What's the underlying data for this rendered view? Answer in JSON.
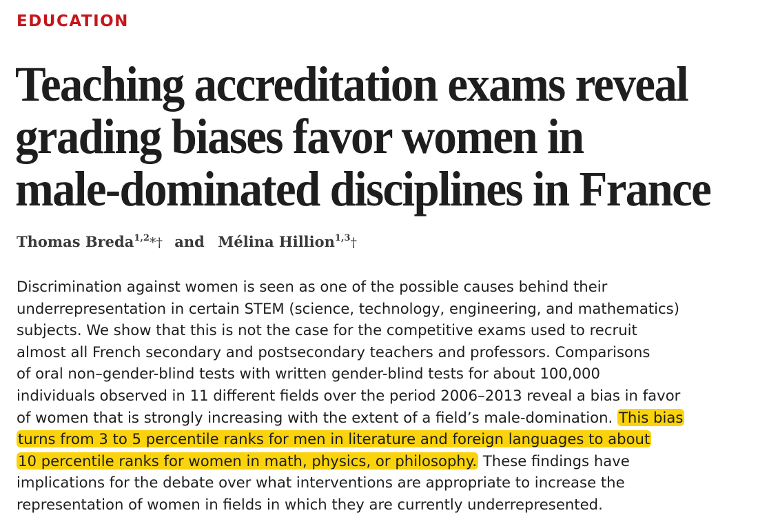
{
  "section_label": "EDUCATION",
  "title_lines": [
    "Teaching accreditation exams reveal",
    "grading biases favor women in",
    "male-dominated disciplines in France"
  ],
  "authors": [
    {
      "name": "Thomas Breda",
      "affiliations": "1,2",
      "marks": "*†"
    },
    {
      "name": "Mélina Hillion",
      "affiliations": "1,3",
      "marks": "†"
    }
  ],
  "author_connector": "and",
  "abstract": {
    "lines": [
      "Discrimination against women is seen as one of the possible causes behind their",
      "underrepresentation in certain STEM (science, technology, engineering, and mathematics)",
      "subjects. We show that this is not the case for the competitive exams used to recruit",
      "almost all French secondary and postsecondary teachers and professors. Comparisons",
      "of oral non–gender-blind tests with written gender-blind tests for about 100,000",
      "individuals observed in 11 different fields over the period 2006–2013 reveal a bias in favor"
    ],
    "line7_plain": "of women that is strongly increasing with the extent of a field’s male-domination.",
    "line7_highlight": "This bias",
    "line8_highlight": "turns from 3 to 5 percentile ranks for men in literature and foreign languages to about",
    "line9_highlight": "10 percentile ranks for women in math, physics, or philosophy.",
    "line9_plain": "These findings have",
    "line10": "implications for the debate over what interventions are appropriate to increase the",
    "line11": "representation of women in fields in which they are currently underrepresented."
  },
  "colors": {
    "section_label": "#c4161c",
    "title": "#1e1e1e",
    "highlight": "#fbd30c"
  }
}
